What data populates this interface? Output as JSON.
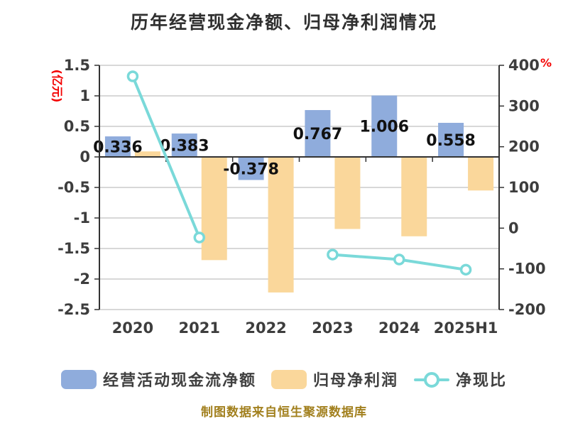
{
  "chart_data": {
    "type": "bar",
    "subtype": "combo-bar-line-dual-axis",
    "title": "历年经营现金净额、归母净利润情况",
    "categories": [
      "2020",
      "2021",
      "2022",
      "2023",
      "2024",
      "2025H1"
    ],
    "left_axis": {
      "unit": "(亿元)",
      "unit_color": "#f40000",
      "max": 1.5,
      "min": -2.5,
      "step": 0.5,
      "ticks": [
        "1.5",
        "1",
        "0.5",
        "0",
        "-0.5",
        "-1",
        "-1.5",
        "-2",
        "-2.5"
      ]
    },
    "right_axis": {
      "unit": "%",
      "unit_color": "#f40000",
      "max": 400,
      "min": -200,
      "step": 100,
      "ticks": [
        "400",
        "300",
        "200",
        "100",
        "0",
        "-100",
        "-200"
      ]
    },
    "grid": true,
    "legend_position": "bottom",
    "series": [
      {
        "name": "经营活动现金流净额",
        "type": "bar",
        "axis": "left",
        "color": "#8facdc",
        "values": [
          0.336,
          0.383,
          -0.378,
          0.767,
          1.006,
          0.558
        ],
        "value_labels": [
          "0.336",
          "0.383",
          "-0.378",
          "0.767",
          "1.006",
          "0.558"
        ]
      },
      {
        "name": "归母净利润",
        "type": "bar",
        "axis": "left",
        "color": "#fad79b",
        "values": [
          0.09,
          -1.69,
          -2.22,
          -1.18,
          -1.3,
          -0.55
        ],
        "values_estimated": true
      },
      {
        "name": "净现比",
        "type": "line",
        "axis": "right",
        "color": "#7ad9d9",
        "marker": "circle-white-fill",
        "values": [
          373,
          -23,
          null,
          -65,
          -77,
          -102
        ],
        "values_estimated": true
      }
    ]
  },
  "footer": {
    "text": "制图数据来自恒生聚源数据库",
    "color": "#a2801e"
  },
  "style_colors": {
    "grid_line": "#cccccc",
    "axis_line": "#333333",
    "tick_text": "#3d3d3d",
    "value_label_text": "#111111",
    "title_text": "#303030"
  }
}
